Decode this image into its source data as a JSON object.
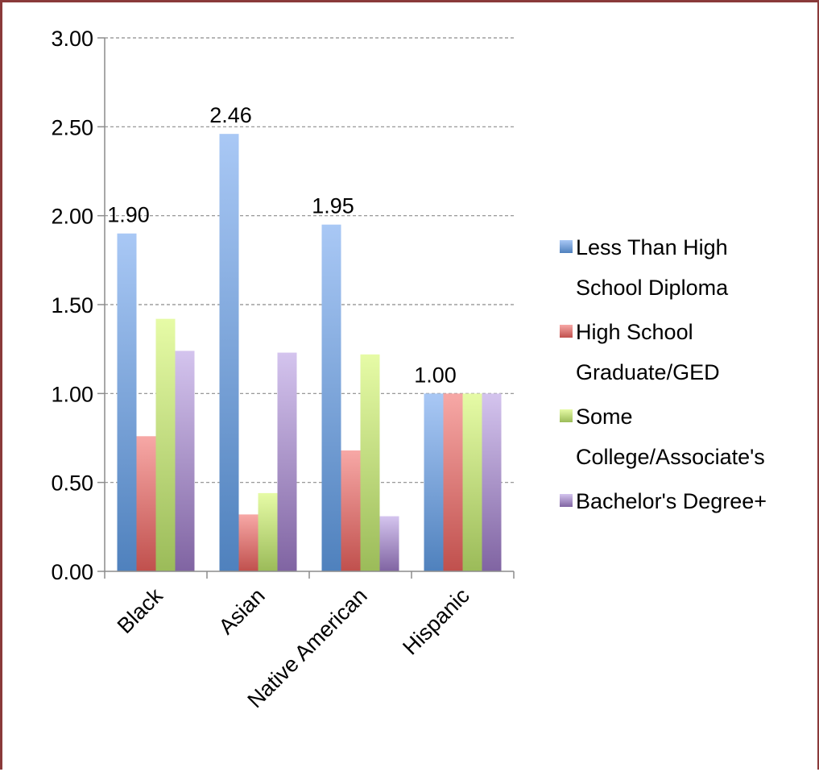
{
  "chart_data": {
    "type": "bar",
    "categories": [
      "Black",
      "Asian",
      "Native American",
      "Hispanic"
    ],
    "series": [
      {
        "name": "Less Than High School Diploma",
        "values": [
          1.9,
          2.46,
          1.95,
          1.0
        ],
        "color": "#4f81bd",
        "color_light": "#a9c8f5"
      },
      {
        "name": "High School Graduate/GED",
        "values": [
          0.76,
          0.32,
          0.68,
          1.0
        ],
        "color": "#c0504d",
        "color_light": "#f7a8a6"
      },
      {
        "name": "Some College/Associate's",
        "values": [
          1.42,
          0.44,
          1.22,
          1.0
        ],
        "color": "#9bbb59",
        "color_light": "#e6fba6"
      },
      {
        "name": "Bachelor's Degree+",
        "values": [
          1.24,
          1.23,
          0.31,
          1.0
        ],
        "color": "#8064a2",
        "color_light": "#d4c4ee"
      }
    ],
    "data_labels": [
      {
        "category": "Black",
        "text": "1.90"
      },
      {
        "category": "Asian",
        "text": "2.46"
      },
      {
        "category": "Native American",
        "text": "1.95"
      },
      {
        "category": "Hispanic",
        "text": "1.00"
      }
    ],
    "y_ticks": [
      "0.00",
      "0.50",
      "1.00",
      "1.50",
      "2.00",
      "2.50",
      "3.00"
    ],
    "ylim": [
      0,
      3
    ],
    "grid": true,
    "legend": {
      "position": "right",
      "entries": [
        {
          "lines": [
            "Less Than High",
            "School Diploma"
          ]
        },
        {
          "lines": [
            "High School",
            "Graduate/GED"
          ]
        },
        {
          "lines": [
            "Some",
            "College/Associate's"
          ]
        },
        {
          "lines": [
            "Bachelor's Degree+"
          ]
        }
      ]
    },
    "title": "",
    "xlabel": "",
    "ylabel": ""
  }
}
